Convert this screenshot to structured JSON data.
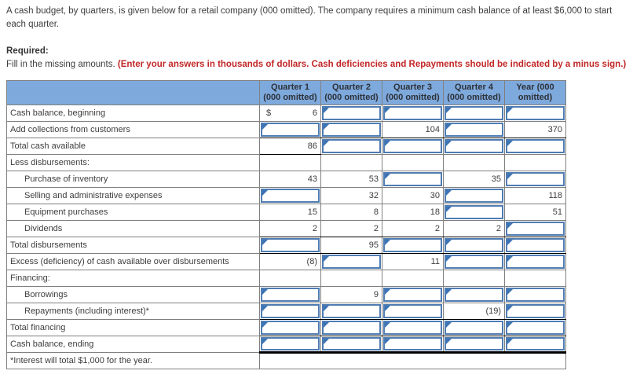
{
  "intro": {
    "paragraph": "A cash budget, by quarters, is given below for a retail company (000 omitted). The company requires a minimum cash balance of at least $6,000 to start each quarter.",
    "required_label": "Required:",
    "instruction_plain": "Fill in the missing amounts. ",
    "instruction_red": "(Enter your answers in thousands of dollars. Cash deficiencies and Repayments should be indicated by a minus sign.)"
  },
  "colors": {
    "header_bg": "#7EA9DC",
    "input_border": "#4F7CB2",
    "marker": "#3C74B5",
    "instruction_red": "#C22727",
    "rule": "#000000"
  },
  "table": {
    "columns": [
      "",
      "Quarter 1\n(000 omitted)",
      "Quarter 2\n(000 omitted)",
      "Quarter 3\n(000 omitted)",
      "Quarter 4\n(000 omitted)",
      "Year (000\nomitted)"
    ],
    "rows": [
      {
        "label": "Cash balance, beginning",
        "cells": [
          {
            "t": "s",
            "p": "$",
            "v": "6"
          },
          {
            "t": "i"
          },
          {
            "t": "i"
          },
          {
            "t": "i"
          },
          {
            "t": "i"
          }
        ]
      },
      {
        "label": "Add collections from customers",
        "rule_bottom": true,
        "cells": [
          {
            "t": "i"
          },
          {
            "t": "i"
          },
          {
            "t": "s",
            "v": "104"
          },
          {
            "t": "i"
          },
          {
            "t": "s",
            "v": "370"
          }
        ]
      },
      {
        "label": "Total cash available",
        "cells": [
          {
            "t": "s",
            "v": "86",
            "rb": true
          },
          {
            "t": "i"
          },
          {
            "t": "i"
          },
          {
            "t": "i"
          },
          {
            "t": "i"
          }
        ]
      },
      {
        "label": "Less disbursements:",
        "cells": [
          {
            "t": "b"
          },
          {
            "t": "b"
          },
          {
            "t": "b"
          },
          {
            "t": "b"
          },
          {
            "t": "b"
          }
        ]
      },
      {
        "label": "Purchase of inventory",
        "indent": true,
        "cells": [
          {
            "t": "s",
            "v": "43"
          },
          {
            "t": "s",
            "v": "53"
          },
          {
            "t": "i"
          },
          {
            "t": "s",
            "v": "35"
          },
          {
            "t": "i"
          }
        ]
      },
      {
        "label": "Selling and administrative expenses",
        "indent": true,
        "cells": [
          {
            "t": "i"
          },
          {
            "t": "s",
            "v": "32"
          },
          {
            "t": "s",
            "v": "30"
          },
          {
            "t": "i"
          },
          {
            "t": "s",
            "v": "118"
          }
        ]
      },
      {
        "label": "Equipment purchases",
        "indent": true,
        "cells": [
          {
            "t": "s",
            "v": "15"
          },
          {
            "t": "s",
            "v": "8"
          },
          {
            "t": "s",
            "v": "18"
          },
          {
            "t": "i"
          },
          {
            "t": "s",
            "v": "51"
          }
        ]
      },
      {
        "label": "Dividends",
        "indent": true,
        "rule_bottom": true,
        "cells": [
          {
            "t": "s",
            "v": "2"
          },
          {
            "t": "s",
            "v": "2"
          },
          {
            "t": "s",
            "v": "2"
          },
          {
            "t": "s",
            "v": "2"
          },
          {
            "t": "i"
          }
        ]
      },
      {
        "label": "Total disbursements",
        "rule_bottom": true,
        "cells": [
          {
            "t": "i"
          },
          {
            "t": "s",
            "v": "95"
          },
          {
            "t": "i"
          },
          {
            "t": "i"
          },
          {
            "t": "i"
          }
        ]
      },
      {
        "label": "Excess (deficiency) of cash available over disbursements",
        "cells": [
          {
            "t": "s",
            "v": "(8)"
          },
          {
            "t": "i"
          },
          {
            "t": "s",
            "v": "11"
          },
          {
            "t": "i"
          },
          {
            "t": "i"
          }
        ]
      },
      {
        "label": "Financing:",
        "cells": [
          {
            "t": "b"
          },
          {
            "t": "b"
          },
          {
            "t": "b"
          },
          {
            "t": "b"
          },
          {
            "t": "b"
          }
        ]
      },
      {
        "label": "Borrowings",
        "indent": true,
        "cells": [
          {
            "t": "i"
          },
          {
            "t": "s",
            "v": "9"
          },
          {
            "t": "i"
          },
          {
            "t": "i"
          },
          {
            "t": "i"
          }
        ]
      },
      {
        "label": "Repayments (including interest)*",
        "indent": true,
        "rule_bottom": true,
        "cells": [
          {
            "t": "i"
          },
          {
            "t": "i"
          },
          {
            "t": "i"
          },
          {
            "t": "s",
            "v": "(19)"
          },
          {
            "t": "i"
          }
        ]
      },
      {
        "label": "Total financing",
        "rule_bottom": true,
        "cells": [
          {
            "t": "i"
          },
          {
            "t": "i"
          },
          {
            "t": "i"
          },
          {
            "t": "i"
          },
          {
            "t": "i"
          }
        ]
      },
      {
        "label": "Cash balance, ending",
        "thick_bottom": true,
        "cells": [
          {
            "t": "i"
          },
          {
            "t": "i"
          },
          {
            "t": "i"
          },
          {
            "t": "i"
          },
          {
            "t": "i"
          }
        ]
      },
      {
        "label": "*Interest will total $1,000 for the year.",
        "footnote": true,
        "cells": []
      }
    ]
  }
}
